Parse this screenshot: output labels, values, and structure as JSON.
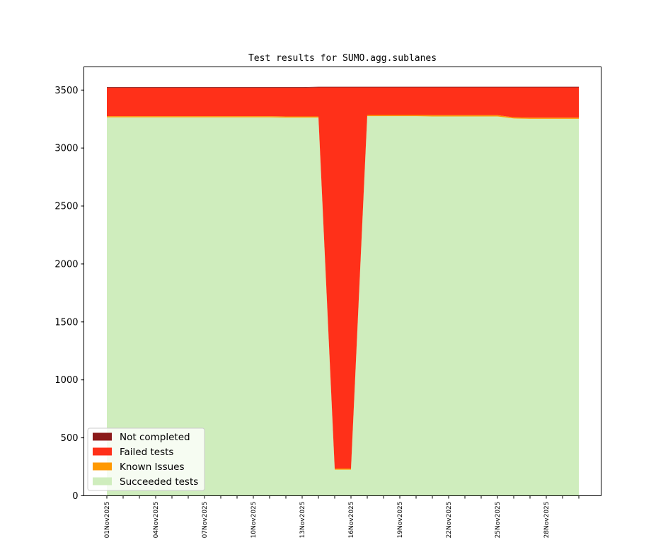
{
  "chart_data": {
    "type": "area",
    "stacked": true,
    "title": "Test results for SUMO.agg.sublanes",
    "xlabel": "",
    "ylabel": "",
    "ylim": [
      0,
      3700
    ],
    "yticks": [
      0,
      500,
      1000,
      1500,
      2000,
      2500,
      3000,
      3500
    ],
    "x": [
      "01Nov2025",
      "02Nov2025",
      "03Nov2025",
      "04Nov2025",
      "05Nov2025",
      "06Nov2025",
      "07Nov2025",
      "08Nov2025",
      "09Nov2025",
      "10Nov2025",
      "11Nov2025",
      "12Nov2025",
      "13Nov2025",
      "14Nov2025",
      "15Nov2025",
      "16Nov2025",
      "17Nov2025",
      "18Nov2025",
      "19Nov2025",
      "20Nov2025",
      "21Nov2025",
      "22Nov2025",
      "23Nov2025",
      "24Nov2025",
      "25Nov2025",
      "26Nov2025",
      "27Nov2025",
      "28Nov2025",
      "29Nov2025",
      "30Nov2025"
    ],
    "xtick_labels": [
      "01Nov2025",
      "04Nov2025",
      "07Nov2025",
      "10Nov2025",
      "13Nov2025",
      "16Nov2025",
      "19Nov2025",
      "22Nov2025",
      "25Nov2025",
      "28Nov2025"
    ],
    "series": [
      {
        "name": "Succeeded tests",
        "color": "#cfedbd",
        "values": [
          3265,
          3265,
          3265,
          3265,
          3265,
          3265,
          3265,
          3265,
          3265,
          3265,
          3265,
          3263,
          3263,
          3263,
          225,
          225,
          3275,
          3275,
          3275,
          3275,
          3273,
          3273,
          3273,
          3273,
          3273,
          3255,
          3252,
          3252,
          3252,
          3252
        ]
      },
      {
        "name": "Known Issues",
        "color": "#ff9900",
        "values": [
          10,
          10,
          10,
          10,
          10,
          10,
          10,
          10,
          10,
          10,
          10,
          10,
          10,
          10,
          10,
          10,
          10,
          10,
          10,
          10,
          10,
          10,
          10,
          10,
          10,
          10,
          10,
          10,
          10,
          10
        ]
      },
      {
        "name": "Failed tests",
        "color": "#ff3019",
        "values": [
          245,
          245,
          245,
          245,
          245,
          245,
          245,
          245,
          245,
          245,
          245,
          247,
          247,
          250,
          3288,
          3288,
          238,
          238,
          238,
          238,
          240,
          240,
          240,
          240,
          240,
          258,
          261,
          261,
          261,
          261
        ]
      },
      {
        "name": "Not completed",
        "color": "#8b1a1a",
        "values": [
          5,
          5,
          5,
          5,
          5,
          5,
          5,
          5,
          5,
          5,
          5,
          5,
          5,
          5,
          5,
          5,
          5,
          5,
          5,
          5,
          5,
          5,
          5,
          5,
          5,
          5,
          5,
          5,
          5,
          5
        ]
      }
    ],
    "legend": {
      "placement": "lower-left",
      "entries": [
        "Not completed",
        "Failed tests",
        "Known Issues",
        "Succeeded tests"
      ]
    },
    "grid": false
  }
}
